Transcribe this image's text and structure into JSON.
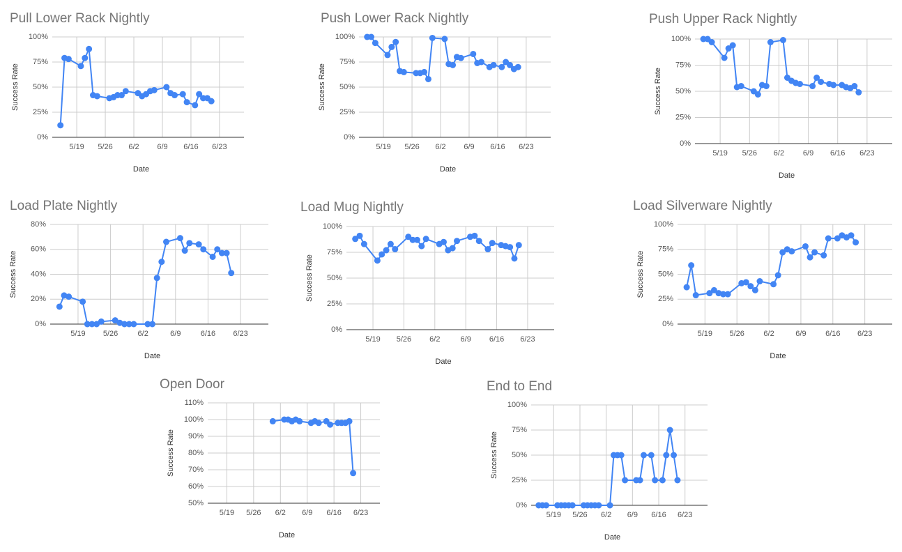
{
  "chart_data": [
    {
      "type": "line",
      "title": "Pull Lower Rack Nightly",
      "x_label": "Date",
      "y_label": "Success Rate",
      "color": "#4285f4",
      "grid": true,
      "x": [
        "5/15",
        "5/16",
        "5/17",
        "5/20",
        "5/21",
        "5/22",
        "5/23",
        "5/24",
        "5/27",
        "5/28",
        "5/29",
        "5/30",
        "5/31",
        "6/3",
        "6/4",
        "6/5",
        "6/6",
        "6/7",
        "6/10",
        "6/11",
        "6/12",
        "6/14",
        "6/15",
        "6/17",
        "6/18",
        "6/19",
        "6/20",
        "6/21"
      ],
      "values": [
        12,
        79,
        78,
        71,
        79,
        88,
        42,
        41,
        39,
        40,
        42,
        42,
        46,
        44,
        41,
        43,
        46,
        47,
        50,
        44,
        42,
        43,
        35,
        32,
        43,
        39,
        39,
        36
      ],
      "xlim": [
        "5/13",
        "6/29"
      ],
      "xticks": [
        "5/19",
        "5/26",
        "6/2",
        "6/9",
        "6/16",
        "6/23"
      ],
      "ylim": [
        0,
        100
      ],
      "yticks": [
        {
          "value": 0,
          "label": "0%"
        },
        {
          "value": 25,
          "label": "25%"
        },
        {
          "value": 50,
          "label": "50%"
        },
        {
          "value": 75,
          "label": "75%"
        },
        {
          "value": 100,
          "label": "100%"
        }
      ]
    },
    {
      "type": "line",
      "title": "Push Lower Rack Nightly",
      "x_label": "Date",
      "y_label": "Success Rate",
      "color": "#4285f4",
      "grid": true,
      "x": [
        "5/15",
        "5/16",
        "5/17",
        "5/20",
        "5/21",
        "5/22",
        "5/23",
        "5/24",
        "5/27",
        "5/28",
        "5/29",
        "5/30",
        "5/31",
        "6/3",
        "6/4",
        "6/5",
        "6/6",
        "6/7",
        "6/10",
        "6/11",
        "6/12",
        "6/14",
        "6/15",
        "6/17",
        "6/18",
        "6/19",
        "6/20",
        "6/21"
      ],
      "values": [
        100,
        100,
        94,
        82,
        90,
        95,
        66,
        65,
        64,
        64,
        65,
        58,
        99,
        98,
        73,
        72,
        80,
        79,
        83,
        74,
        75,
        70,
        72,
        70,
        75,
        72,
        68,
        70
      ],
      "xlim": [
        "5/13",
        "6/29"
      ],
      "xticks": [
        "5/19",
        "5/26",
        "6/2",
        "6/9",
        "6/16",
        "6/23"
      ],
      "ylim": [
        0,
        100
      ],
      "yticks": [
        {
          "value": 0,
          "label": "0%"
        },
        {
          "value": 25,
          "label": "25%"
        },
        {
          "value": 50,
          "label": "50%"
        },
        {
          "value": 75,
          "label": "75%"
        },
        {
          "value": 100,
          "label": "100%"
        }
      ]
    },
    {
      "type": "line",
      "title": "Push Upper Rack Nightly",
      "x_label": "Date",
      "y_label": "Success Rate",
      "color": "#4285f4",
      "grid": true,
      "x": [
        "5/15",
        "5/16",
        "5/17",
        "5/20",
        "5/21",
        "5/22",
        "5/23",
        "5/24",
        "5/27",
        "5/28",
        "5/29",
        "5/30",
        "5/31",
        "6/3",
        "6/4",
        "6/5",
        "6/6",
        "6/7",
        "6/10",
        "6/11",
        "6/12",
        "6/14",
        "6/15",
        "6/17",
        "6/18",
        "6/19",
        "6/20",
        "6/21"
      ],
      "values": [
        100,
        100,
        97,
        82,
        91,
        94,
        54,
        55,
        50,
        47,
        56,
        55,
        97,
        99,
        63,
        60,
        58,
        57,
        55,
        63,
        59,
        57,
        56,
        56,
        54,
        53,
        55,
        49
      ],
      "xlim": [
        "5/13",
        "6/29"
      ],
      "xticks": [
        "5/19",
        "5/26",
        "6/2",
        "6/9",
        "6/16",
        "6/23"
      ],
      "ylim": [
        0,
        100
      ],
      "yticks": [
        {
          "value": 0,
          "label": "0%"
        },
        {
          "value": 25,
          "label": "25%"
        },
        {
          "value": 50,
          "label": "50%"
        },
        {
          "value": 75,
          "label": "75%"
        },
        {
          "value": 100,
          "label": "100%"
        }
      ]
    },
    {
      "type": "line",
      "title": "Load Plate Nightly",
      "x_label": "Date",
      "y_label": "Success Rate",
      "color": "#4285f4",
      "grid": true,
      "x": [
        "5/15",
        "5/16",
        "5/17",
        "5/20",
        "5/21",
        "5/22",
        "5/23",
        "5/24",
        "5/27",
        "5/28",
        "5/29",
        "5/30",
        "5/31",
        "6/3",
        "6/4",
        "6/5",
        "6/6",
        "6/7",
        "6/10",
        "6/11",
        "6/12",
        "6/14",
        "6/15",
        "6/17",
        "6/18",
        "6/19",
        "6/20",
        "6/21"
      ],
      "values": [
        14,
        23,
        22,
        18,
        0,
        0,
        0,
        2,
        3,
        1,
        0,
        0,
        0,
        0,
        0,
        37,
        50,
        66,
        69,
        59,
        65,
        64,
        60,
        54,
        60,
        57,
        57,
        41
      ],
      "xlim": [
        "5/13",
        "6/29"
      ],
      "xticks": [
        "5/19",
        "5/26",
        "6/2",
        "6/9",
        "6/16",
        "6/23"
      ],
      "ylim": [
        0,
        80
      ],
      "yticks": [
        {
          "value": 0,
          "label": "0%"
        },
        {
          "value": 20,
          "label": "20%"
        },
        {
          "value": 40,
          "label": "40%"
        },
        {
          "value": 60,
          "label": "60%"
        },
        {
          "value": 80,
          "label": "80%"
        }
      ]
    },
    {
      "type": "line",
      "title": "Load Mug Nightly",
      "x_label": "Date",
      "y_label": "Success Rate",
      "color": "#4285f4",
      "grid": true,
      "x": [
        "5/15",
        "5/16",
        "5/17",
        "5/20",
        "5/21",
        "5/22",
        "5/23",
        "5/24",
        "5/27",
        "5/28",
        "5/29",
        "5/30",
        "5/31",
        "6/3",
        "6/4",
        "6/5",
        "6/6",
        "6/7",
        "6/10",
        "6/11",
        "6/12",
        "6/14",
        "6/15",
        "6/17",
        "6/18",
        "6/19",
        "6/20",
        "6/21"
      ],
      "values": [
        88,
        91,
        83,
        67,
        73,
        77,
        83,
        78,
        90,
        87,
        87,
        81,
        88,
        83,
        85,
        77,
        79,
        86,
        90,
        91,
        86,
        78,
        84,
        82,
        81,
        80,
        69,
        82
      ],
      "xlim": [
        "5/13",
        "6/29"
      ],
      "xticks": [
        "5/19",
        "5/26",
        "6/2",
        "6/9",
        "6/16",
        "6/23"
      ],
      "ylim": [
        0,
        100
      ],
      "yticks": [
        {
          "value": 0,
          "label": "0%"
        },
        {
          "value": 25,
          "label": "25%"
        },
        {
          "value": 50,
          "label": "50%"
        },
        {
          "value": 75,
          "label": "75%"
        },
        {
          "value": 100,
          "label": "100%"
        }
      ]
    },
    {
      "type": "line",
      "title": "Load Silverware Nightly",
      "x_label": "Date",
      "y_label": "Success Rate",
      "color": "#4285f4",
      "grid": true,
      "x": [
        "5/15",
        "5/16",
        "5/17",
        "5/20",
        "5/21",
        "5/22",
        "5/23",
        "5/24",
        "5/27",
        "5/28",
        "5/29",
        "5/30",
        "5/31",
        "6/3",
        "6/4",
        "6/5",
        "6/6",
        "6/7",
        "6/10",
        "6/11",
        "6/12",
        "6/14",
        "6/15",
        "6/17",
        "6/18",
        "6/19",
        "6/20",
        "6/21"
      ],
      "values": [
        37,
        59,
        29,
        31,
        34,
        31,
        30,
        30,
        41,
        42,
        38,
        34,
        43,
        40,
        49,
        72,
        75,
        73,
        78,
        67,
        72,
        69,
        86,
        86,
        89,
        87,
        89,
        82
      ],
      "xlim": [
        "5/13",
        "6/29"
      ],
      "xticks": [
        "5/19",
        "5/26",
        "6/2",
        "6/9",
        "6/16",
        "6/23"
      ],
      "ylim": [
        0,
        100
      ],
      "yticks": [
        {
          "value": 0,
          "label": "0%"
        },
        {
          "value": 25,
          "label": "25%"
        },
        {
          "value": 50,
          "label": "50%"
        },
        {
          "value": 75,
          "label": "75%"
        },
        {
          "value": 100,
          "label": "100%"
        }
      ]
    },
    {
      "type": "line",
      "title": "Open Door",
      "x_label": "Date",
      "y_label": "Success Rate",
      "color": "#4285f4",
      "grid": true,
      "x": [
        "5/31",
        "6/3",
        "6/4",
        "6/5",
        "6/6",
        "6/7",
        "6/10",
        "6/11",
        "6/12",
        "6/14",
        "6/15",
        "6/17",
        "6/18",
        "6/19",
        "6/20",
        "6/21"
      ],
      "values": [
        99,
        100,
        100,
        99,
        100,
        99,
        98,
        99,
        98,
        99,
        97,
        98,
        98,
        98,
        99,
        68
      ],
      "xlim": [
        "5/14",
        "6/28"
      ],
      "xticks": [
        "5/19",
        "5/26",
        "6/2",
        "6/9",
        "6/16",
        "6/23"
      ],
      "ylim": [
        50,
        110
      ],
      "yticks": [
        {
          "value": 50,
          "label": "50%"
        },
        {
          "value": 60,
          "label": "60%"
        },
        {
          "value": 70,
          "label": "70%"
        },
        {
          "value": 80,
          "label": "80%"
        },
        {
          "value": 90,
          "label": "90%"
        },
        {
          "value": 100,
          "label": "100%"
        },
        {
          "value": 110,
          "label": "110%"
        }
      ]
    },
    {
      "type": "line",
      "title": "End to End",
      "x_label": "Date",
      "y_label": "Success Rate",
      "color": "#4285f4",
      "grid": true,
      "x": [
        "5/15",
        "5/16",
        "5/17",
        "5/20",
        "5/21",
        "5/22",
        "5/23",
        "5/24",
        "5/27",
        "5/28",
        "5/29",
        "5/30",
        "5/31",
        "6/3",
        "6/4",
        "6/5",
        "6/6",
        "6/7",
        "6/10",
        "6/11",
        "6/12",
        "6/14",
        "6/15",
        "6/17",
        "6/18",
        "6/19",
        "6/20",
        "6/21"
      ],
      "values": [
        0,
        0,
        0,
        0,
        0,
        0,
        0,
        0,
        0,
        0,
        0,
        0,
        0,
        0,
        50,
        50,
        50,
        25,
        25,
        25,
        50,
        50,
        25,
        25,
        50,
        75,
        50,
        25
      ],
      "xlim": [
        "5/13",
        "6/29"
      ],
      "xticks": [
        "5/19",
        "5/26",
        "6/2",
        "6/9",
        "6/16",
        "6/23"
      ],
      "ylim": [
        0,
        100
      ],
      "yticks": [
        {
          "value": 0,
          "label": "0%"
        },
        {
          "value": 25,
          "label": "25%"
        },
        {
          "value": 50,
          "label": "50%"
        },
        {
          "value": 75,
          "label": "75%"
        },
        {
          "value": 100,
          "label": "100%"
        }
      ]
    }
  ]
}
